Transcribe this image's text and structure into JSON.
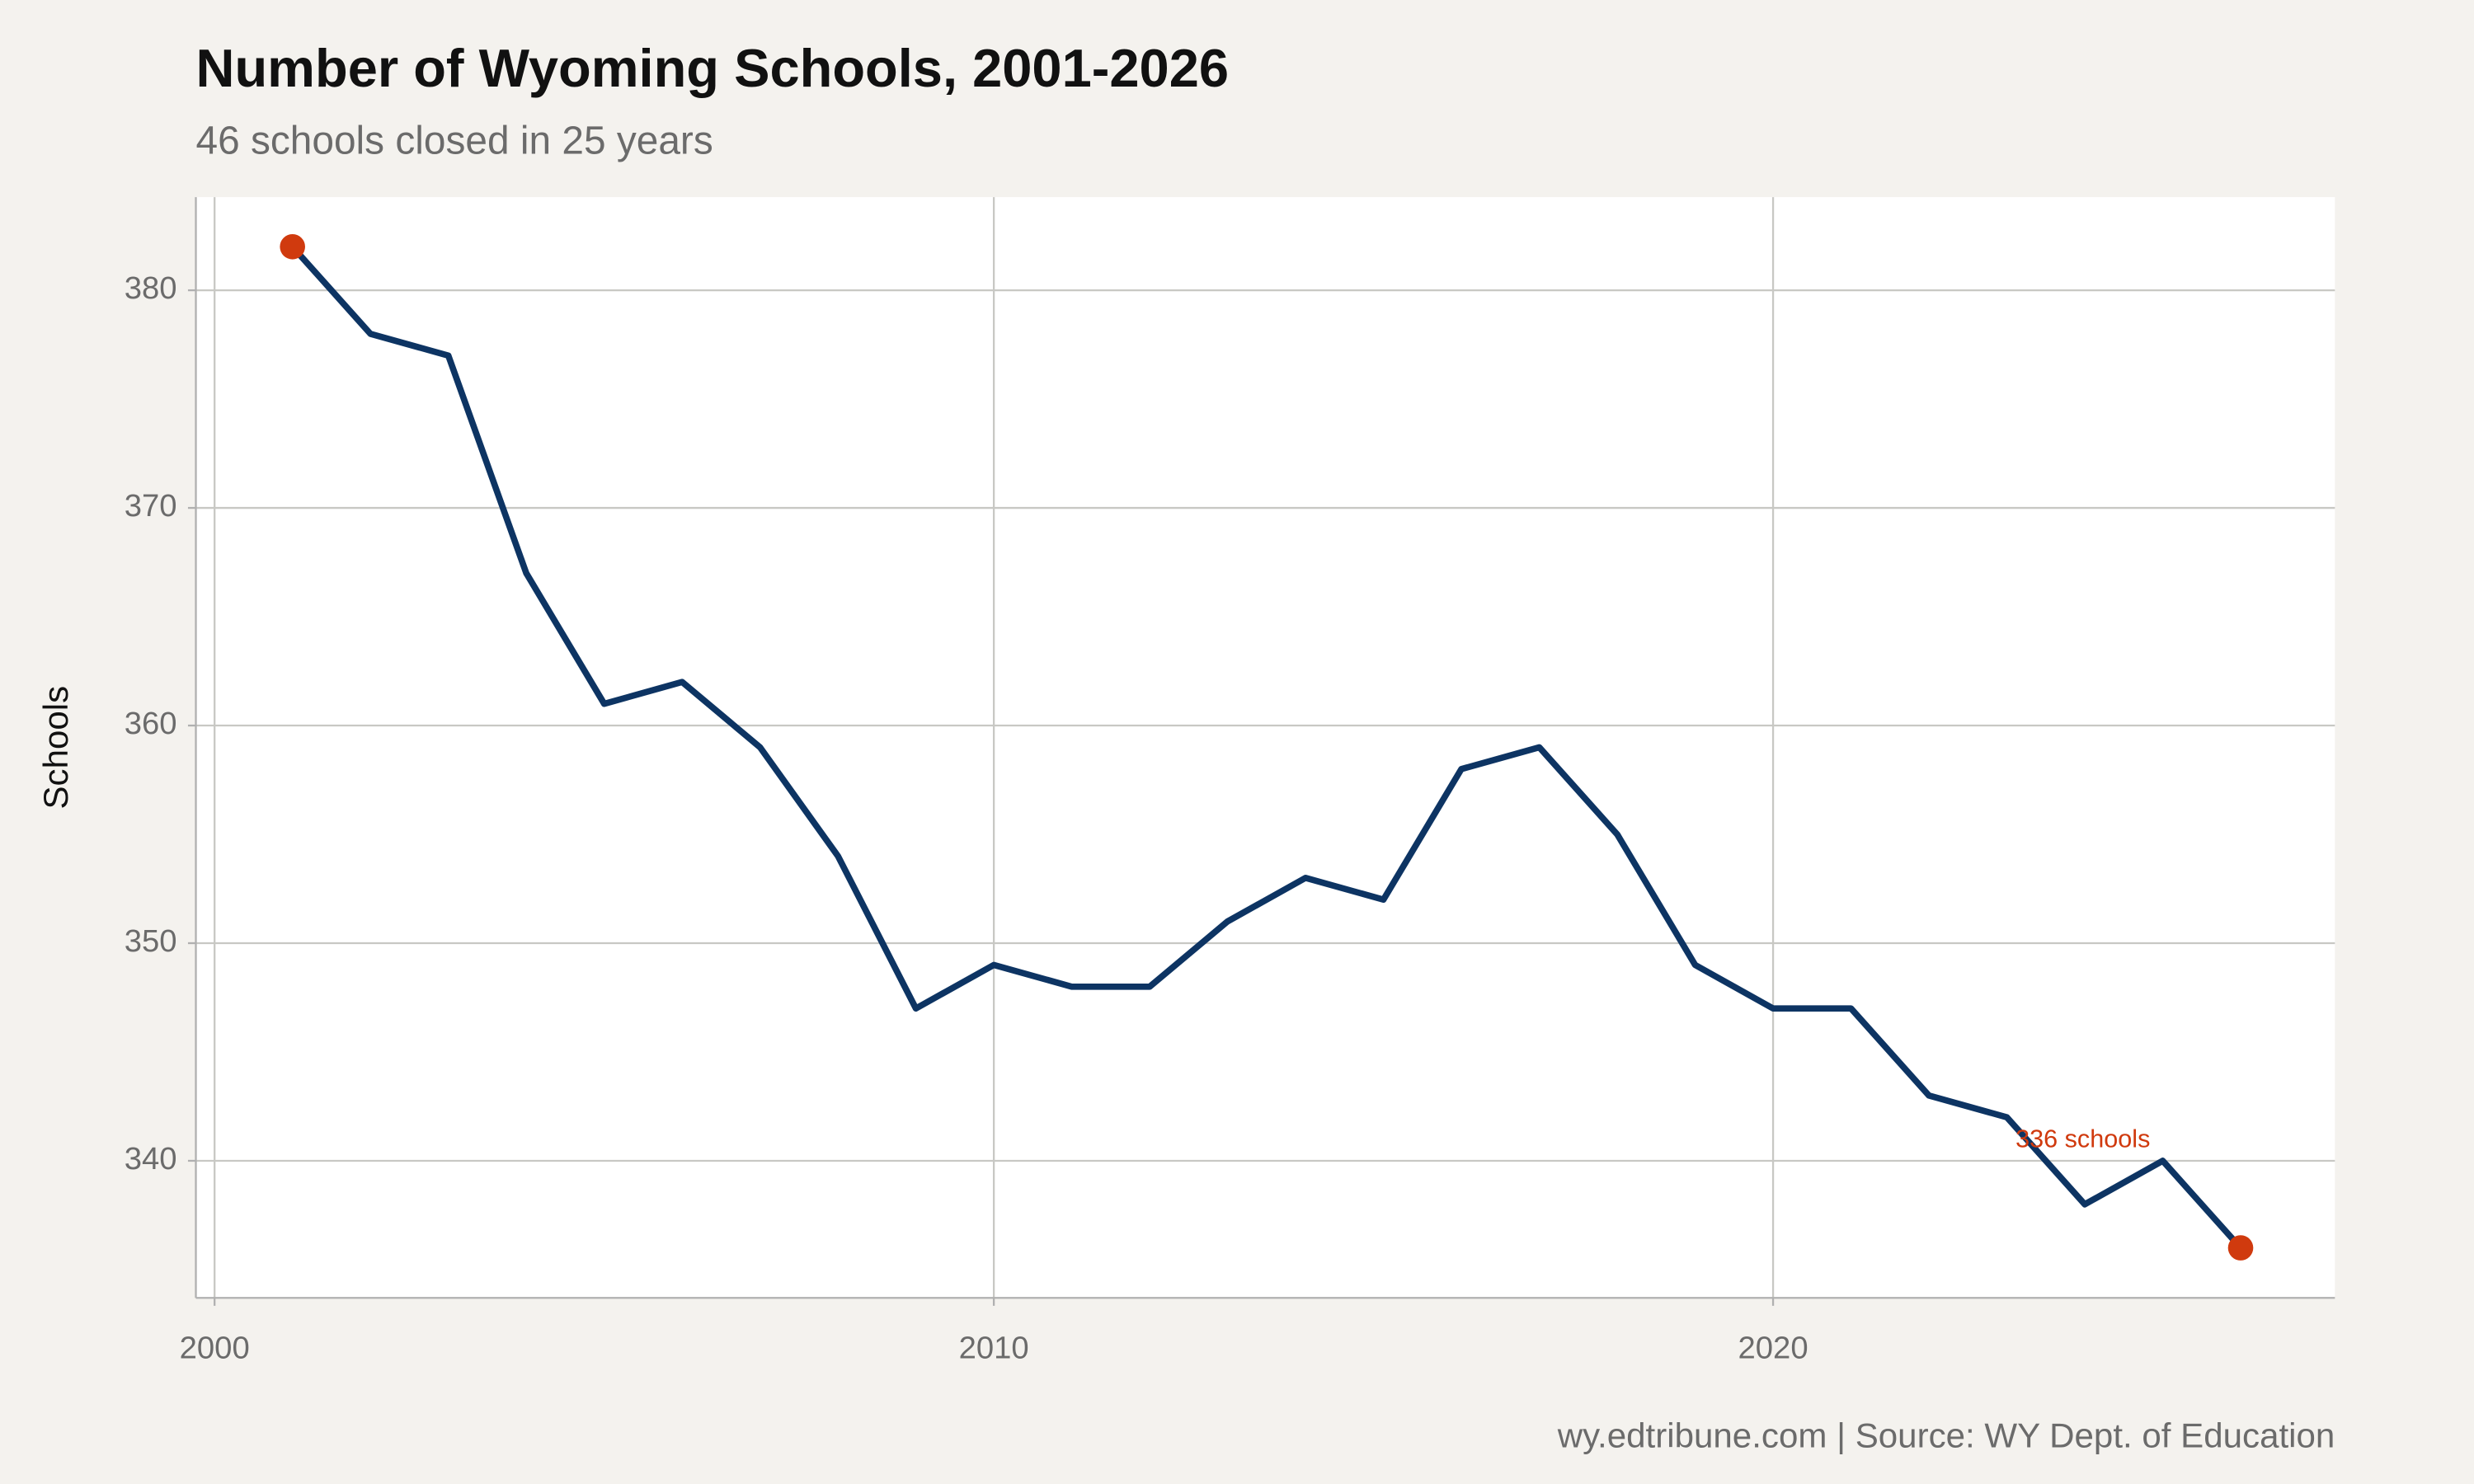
{
  "chart_data": {
    "type": "line",
    "title": "Number of Wyoming Schools, 2001-2026",
    "subtitle": "46 schools closed in 25 years",
    "y_label": "Schools",
    "caption": "wy.edtribune.com | Source: WY Dept. of Education",
    "annotation": "336 schools",
    "x": [
      2001,
      2002,
      2003,
      2004,
      2005,
      2006,
      2007,
      2008,
      2009,
      2010,
      2011,
      2012,
      2013,
      2014,
      2015,
      2016,
      2017,
      2018,
      2019,
      2020,
      2021,
      2022,
      2023,
      2024,
      2025,
      2026
    ],
    "values": [
      382,
      378,
      377,
      367,
      361,
      362,
      359,
      354,
      347,
      349,
      348,
      348,
      351,
      353,
      352,
      358,
      359,
      355,
      349,
      347,
      347,
      343,
      342,
      338,
      340,
      336
    ],
    "color": "#0d3463",
    "endpoint_color": "#d03a0e",
    "xlim": [
      1999.76,
      2027.21
    ],
    "xticks": [
      2000,
      2010,
      2020
    ],
    "ylim": [
      333.7,
      384.28
    ],
    "yticks": [
      340,
      350,
      360,
      370,
      380
    ],
    "grid": true
  }
}
